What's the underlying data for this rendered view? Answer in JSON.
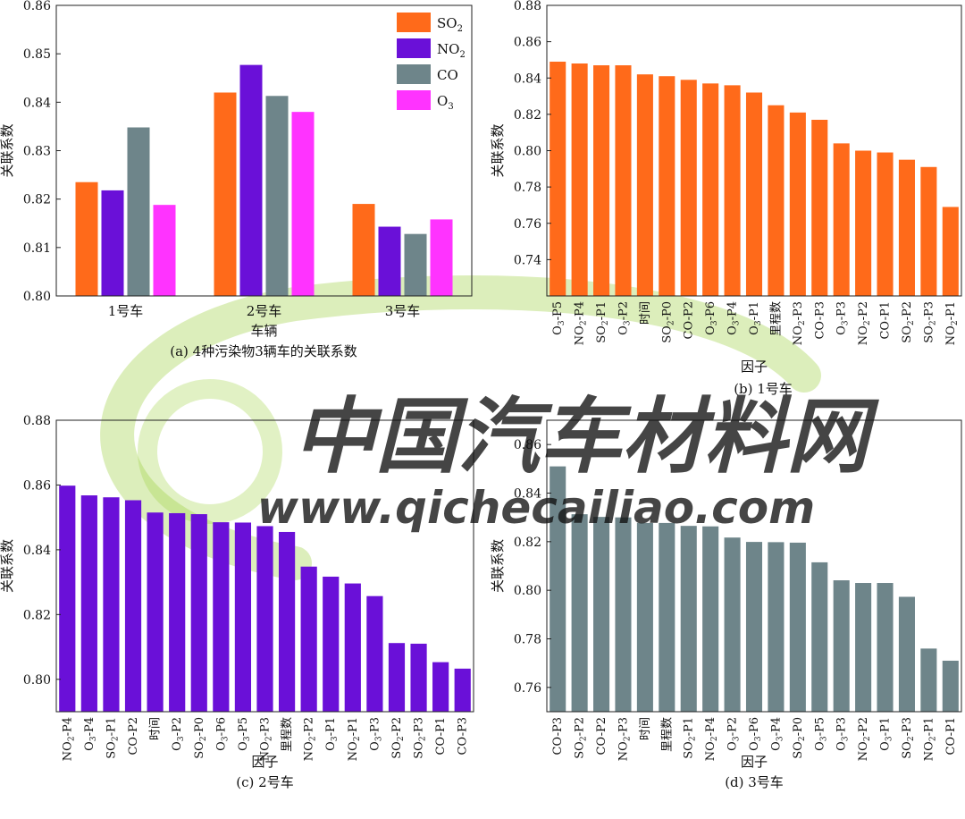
{
  "watermark": {
    "title": "中国汽车材料网",
    "url": "www.qichecailiao.com",
    "title_color": "#2f63b5",
    "url_color": "#e8572f",
    "swirl_color": "#9ccf3c"
  },
  "chart_data": [
    {
      "type": "bar",
      "caption": "(a) 4种污染物3辆车的关联系数",
      "xlabel": "车辆",
      "ylabel": "关联系数",
      "ylim": [
        0.8,
        0.86
      ],
      "yticks": [
        "0.80",
        "0.81",
        "0.82",
        "0.83",
        "0.84",
        "0.85",
        "0.86"
      ],
      "categories": [
        "1号车",
        "2号车",
        "3号车"
      ],
      "legend_placement": "top-right",
      "series": [
        {
          "name": "SO",
          "sub": "2",
          "color": "#ff6a1a",
          "values": [
            0.8235,
            0.842,
            0.819
          ]
        },
        {
          "name": "NO",
          "sub": "2",
          "color": "#6a10d8",
          "values": [
            0.8218,
            0.8477,
            0.8143
          ]
        },
        {
          "name": "CO",
          "sub": "",
          "color": "#6e858a",
          "values": [
            0.8348,
            0.8413,
            0.8128
          ]
        },
        {
          "name": "O",
          "sub": "3",
          "color": "#ff33ff",
          "values": [
            0.8188,
            0.838,
            0.8158
          ]
        }
      ]
    },
    {
      "type": "bar",
      "caption": "(b) 1号车",
      "xlabel": "因子",
      "ylabel": "关联系数",
      "ylim": [
        0.72,
        0.88
      ],
      "yticks": [
        "0.74",
        "0.76",
        "0.78",
        "0.80",
        "0.82",
        "0.84",
        "0.86",
        "0.88"
      ],
      "color": "#ff6a1a",
      "categories": [
        {
          "base": "O",
          "sub": "3",
          "rest": "-P5"
        },
        {
          "base": "NO",
          "sub": "2",
          "rest": "-P4"
        },
        {
          "base": "SO",
          "sub": "2",
          "rest": "-P1"
        },
        {
          "base": "O",
          "sub": "3",
          "rest": "-P2"
        },
        {
          "base": "时间",
          "sub": "",
          "rest": ""
        },
        {
          "base": "SO",
          "sub": "2",
          "rest": "-P0"
        },
        {
          "base": "CO-P2",
          "sub": "",
          "rest": ""
        },
        {
          "base": "O",
          "sub": "3",
          "rest": "-P6"
        },
        {
          "base": "O",
          "sub": "3",
          "rest": "-P4"
        },
        {
          "base": "O",
          "sub": "3",
          "rest": "-P1"
        },
        {
          "base": "里程数",
          "sub": "",
          "rest": ""
        },
        {
          "base": "NO",
          "sub": "2",
          "rest": "-P3"
        },
        {
          "base": "CO-P3",
          "sub": "",
          "rest": ""
        },
        {
          "base": "O",
          "sub": "3",
          "rest": "-P3"
        },
        {
          "base": "NO",
          "sub": "2",
          "rest": "-P2"
        },
        {
          "base": "CO-P1",
          "sub": "",
          "rest": ""
        },
        {
          "base": "SO",
          "sub": "2",
          "rest": "-P2"
        },
        {
          "base": "SO",
          "sub": "2",
          "rest": "-P3"
        },
        {
          "base": "NO",
          "sub": "2",
          "rest": "-P1"
        }
      ],
      "values": [
        0.849,
        0.848,
        0.847,
        0.847,
        0.842,
        0.841,
        0.839,
        0.837,
        0.836,
        0.832,
        0.825,
        0.821,
        0.817,
        0.804,
        0.8,
        0.799,
        0.795,
        0.791,
        0.769
      ]
    },
    {
      "type": "bar",
      "caption": "(c) 2号车",
      "xlabel": "因子",
      "ylabel": "关联系数",
      "ylim": [
        0.79,
        0.88
      ],
      "yticks": [
        "0.80",
        "0.82",
        "0.84",
        "0.86",
        "0.88"
      ],
      "color": "#6a10d8",
      "categories": [
        {
          "base": "NO",
          "sub": "2",
          "rest": "-P4"
        },
        {
          "base": "O",
          "sub": "3",
          "rest": "-P4"
        },
        {
          "base": "SO",
          "sub": "2",
          "rest": "-P1"
        },
        {
          "base": "CO-P2",
          "sub": "",
          "rest": ""
        },
        {
          "base": "时间",
          "sub": "",
          "rest": ""
        },
        {
          "base": "O",
          "sub": "3",
          "rest": "-P2"
        },
        {
          "base": "SO",
          "sub": "2",
          "rest": "-P0"
        },
        {
          "base": "O",
          "sub": "3",
          "rest": "-P6"
        },
        {
          "base": "O",
          "sub": "3",
          "rest": "-P5"
        },
        {
          "base": "NO",
          "sub": "2",
          "rest": "-P3"
        },
        {
          "base": "里程数",
          "sub": "",
          "rest": ""
        },
        {
          "base": "NO",
          "sub": "2",
          "rest": "-P2"
        },
        {
          "base": "O",
          "sub": "3",
          "rest": "-P1"
        },
        {
          "base": "NO",
          "sub": "2",
          "rest": "-P1"
        },
        {
          "base": "O",
          "sub": "3",
          "rest": "-P3"
        },
        {
          "base": "SO",
          "sub": "2",
          "rest": "-P2"
        },
        {
          "base": "SO",
          "sub": "2",
          "rest": "-P3"
        },
        {
          "base": "CO-P1",
          "sub": "",
          "rest": ""
        },
        {
          "base": "CO-P3",
          "sub": "",
          "rest": ""
        }
      ],
      "values": [
        0.8598,
        0.8568,
        0.8562,
        0.8553,
        0.8515,
        0.8513,
        0.851,
        0.8485,
        0.8484,
        0.8473,
        0.8455,
        0.8348,
        0.8317,
        0.8296,
        0.8257,
        0.8112,
        0.811,
        0.8053,
        0.8033
      ]
    },
    {
      "type": "bar",
      "caption": "(d) 3号车",
      "xlabel": "因子",
      "ylabel": "关联系数",
      "ylim": [
        0.75,
        0.87
      ],
      "yticks": [
        "0.76",
        "0.78",
        "0.80",
        "0.82",
        "0.84",
        "0.86"
      ],
      "color": "#6e858a",
      "categories": [
        {
          "base": "CO-P3",
          "sub": "",
          "rest": ""
        },
        {
          "base": "SO",
          "sub": "2",
          "rest": "-P2"
        },
        {
          "base": "CO-P2",
          "sub": "",
          "rest": ""
        },
        {
          "base": "NO",
          "sub": "2",
          "rest": "-P3"
        },
        {
          "base": "时间",
          "sub": "",
          "rest": ""
        },
        {
          "base": "里程数",
          "sub": "",
          "rest": ""
        },
        {
          "base": "SO",
          "sub": "2",
          "rest": "-P1"
        },
        {
          "base": "NO",
          "sub": "2",
          "rest": "-P4"
        },
        {
          "base": "O",
          "sub": "3",
          "rest": "-P2"
        },
        {
          "base": "O",
          "sub": "3",
          "rest": "-P6"
        },
        {
          "base": "O",
          "sub": "3",
          "rest": "-P4"
        },
        {
          "base": "SO",
          "sub": "2",
          "rest": "-P0"
        },
        {
          "base": "O",
          "sub": "3",
          "rest": "-P5"
        },
        {
          "base": "O",
          "sub": "3",
          "rest": "-P3"
        },
        {
          "base": "NO",
          "sub": "2",
          "rest": "-P2"
        },
        {
          "base": "O",
          "sub": "3",
          "rest": "-P1"
        },
        {
          "base": "SO",
          "sub": "2",
          "rest": "-P3"
        },
        {
          "base": "NO",
          "sub": "2",
          "rest": "-P1"
        },
        {
          "base": "CO-P1",
          "sub": "",
          "rest": ""
        }
      ],
      "values": [
        0.851,
        0.8313,
        0.8302,
        0.83,
        0.8277,
        0.8277,
        0.8265,
        0.8263,
        0.8217,
        0.8199,
        0.8198,
        0.8196,
        0.8115,
        0.8041,
        0.803,
        0.803,
        0.7973,
        0.776,
        0.771
      ]
    }
  ]
}
